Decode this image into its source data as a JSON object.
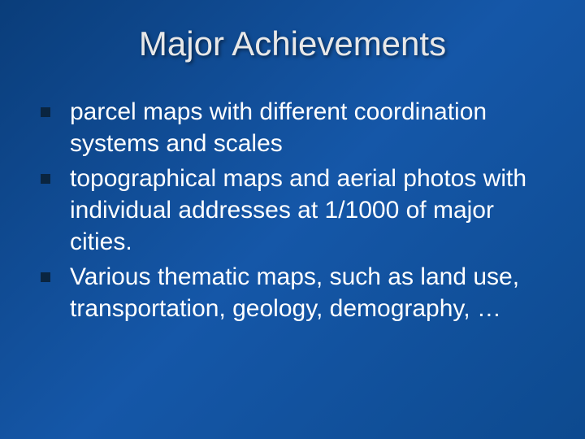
{
  "slide": {
    "title": "Major Achievements",
    "background": {
      "gradient_start": "#0a3d7a",
      "gradient_mid": "#1557a8",
      "gradient_end": "#0d4a8f"
    },
    "title_style": {
      "color": "#e8e8e8",
      "fontsize": 42,
      "font_family": "Arial"
    },
    "bullet_style": {
      "marker_color": "#0a2540",
      "marker_size": 12,
      "text_color": "#ffffff",
      "text_fontsize": 30,
      "font_family": "Verdana"
    },
    "bullets": [
      "parcel maps with different coordination systems and scales",
      "topographical maps and aerial photos with individual addresses at 1/1000 of major cities.",
      "Various thematic maps, such as land use, transportation, geology, demography, …"
    ]
  }
}
